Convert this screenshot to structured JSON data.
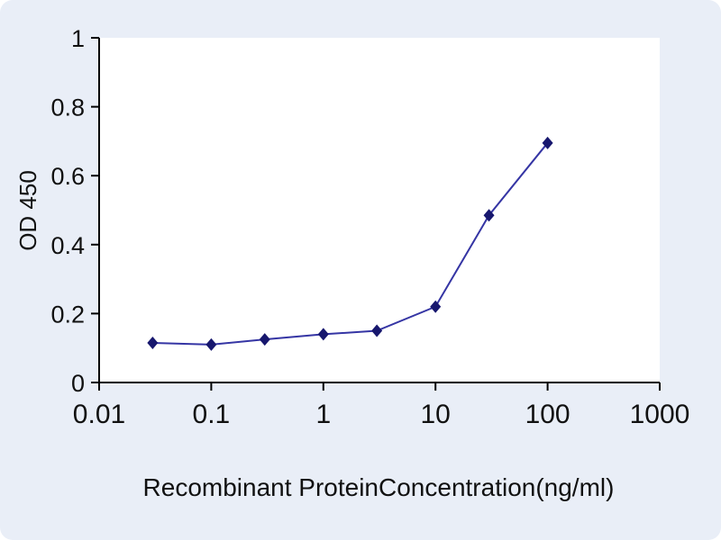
{
  "chart_data": {
    "type": "line",
    "series_name": "OD 450 vs concentration",
    "x": [
      0.03,
      0.1,
      0.3,
      1,
      3,
      10,
      30,
      100
    ],
    "y": [
      0.115,
      0.11,
      0.125,
      0.14,
      0.15,
      0.22,
      0.485,
      0.695
    ],
    "title": "",
    "xlabel": "Recombinant ProteinConcentration(ng/ml)",
    "ylabel": "OD 450",
    "x_scale": "log",
    "xlim": [
      0.01,
      1000
    ],
    "ylim": [
      0,
      1
    ],
    "x_ticks": [
      0.01,
      0.1,
      1,
      10,
      100,
      1000
    ],
    "x_tick_labels": [
      "0.01",
      "0.1",
      "1",
      "10",
      "100",
      "1000"
    ],
    "y_ticks": [
      0,
      0.2,
      0.4,
      0.6,
      0.8,
      1
    ],
    "y_tick_labels": [
      "0",
      "0.2",
      "0.4",
      "0.6",
      "0.8",
      "1"
    ],
    "grid": false,
    "legend": false,
    "marker": "diamond",
    "line_color": "#3535a4",
    "marker_color": "#17176e",
    "axis_color": "#000000",
    "background": "#e9eef7",
    "plot_background": "#ffffff"
  }
}
